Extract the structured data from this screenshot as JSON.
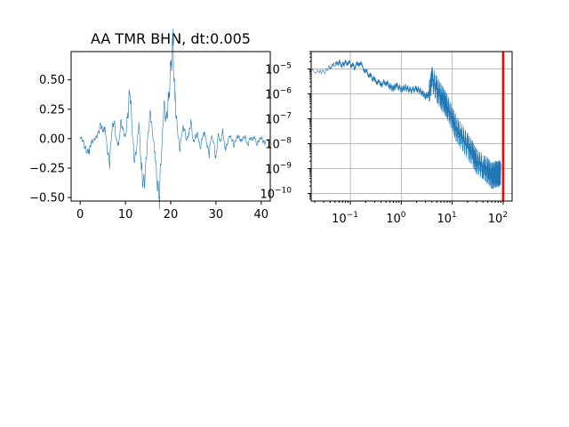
{
  "chart_data": [
    {
      "type": "line",
      "title": "AA TMR BHN, dt:0.005",
      "xlabel": "",
      "ylabel": "",
      "xlim": [
        -2,
        42
      ],
      "ylim": [
        -0.53,
        0.74
      ],
      "xticks": [
        0,
        10,
        20,
        30,
        40
      ],
      "xtick_labels": [
        "0",
        "10",
        "20",
        "30",
        "40"
      ],
      "yticks": [
        -0.5,
        -0.25,
        0.0,
        0.25,
        0.5
      ],
      "ytick_labels": [
        "−0.50",
        "−0.25",
        "0.00",
        "0.25",
        "0.50"
      ],
      "grid": false,
      "line_color": "#1f77b4",
      "series": [
        {
          "x": [
            0,
            0.5,
            1,
            1.5,
            2,
            2.5,
            3,
            3.5,
            4,
            4.5,
            5,
            5.5,
            6,
            6.5,
            7,
            7.5,
            8,
            8.5,
            9,
            9.5,
            10,
            10.5,
            11,
            11.5,
            12,
            12.5,
            13,
            13.5,
            14,
            14.5,
            15,
            15.5,
            16,
            16.5,
            17,
            17.5,
            18,
            18.5,
            19,
            19.5,
            20,
            20.5,
            21,
            21.5,
            22,
            22.5,
            23,
            23.5,
            24,
            24.5,
            25,
            25.5,
            26,
            26.5,
            27,
            27.5,
            28,
            28.5,
            29,
            29.5,
            30,
            30.5,
            31,
            31.5,
            32,
            32.5,
            33,
            33.5,
            34,
            34.5,
            35,
            35.5,
            36,
            36.5,
            37,
            37.5,
            38,
            38.5,
            39,
            39.5,
            40,
            40.5,
            41
          ],
          "y": [
            0.01,
            -0.02,
            -0.06,
            -0.08,
            -0.1,
            -0.05,
            -0.02,
            0.02,
            0.06,
            0.1,
            0.05,
            0.1,
            -0.07,
            -0.2,
            0.05,
            0.15,
            0.0,
            -0.05,
            0.12,
            0.05,
            0.02,
            0.25,
            0.4,
            0.05,
            -0.18,
            -0.05,
            0.15,
            -0.3,
            -0.47,
            -0.2,
            0.05,
            0.2,
            0.02,
            -0.1,
            -0.3,
            -0.47,
            -0.12,
            0.28,
            0.2,
            0.35,
            0.5,
            0.68,
            0.35,
            0.1,
            -0.1,
            0.05,
            0.1,
            0.0,
            0.05,
            0.12,
            -0.05,
            0.03,
            0.05,
            -0.1,
            0.0,
            0.06,
            -0.03,
            -0.12,
            0.02,
            -0.04,
            -0.15,
            0.05,
            -0.05,
            0.05,
            -0.08,
            -0.03,
            0.03,
            -0.02,
            -0.06,
            0.02,
            0.03,
            -0.04,
            0.0,
            0.02,
            -0.05,
            0.0,
            -0.02,
            0.02,
            -0.03,
            -0.01,
            0.0,
            -0.04,
            -0.02
          ]
        }
      ]
    },
    {
      "type": "line",
      "title": "",
      "xlabel": "",
      "ylabel": "",
      "x_scale": "log",
      "y_scale": "log",
      "xlim": [
        0.017,
        150
      ],
      "ylim": [
        5e-11,
        5e-05
      ],
      "xticks": [
        0.1,
        1,
        10,
        100
      ],
      "xtick_labels": [
        {
          "base": "10",
          "exp": "−1"
        },
        {
          "base": "10",
          "exp": "0"
        },
        {
          "base": "10",
          "exp": "1"
        },
        {
          "base": "10",
          "exp": "2"
        }
      ],
      "yticks": [
        1e-10,
        1e-09,
        1e-08,
        1e-07,
        1e-06,
        1e-05
      ],
      "ytick_labels": [
        {
          "base": "10",
          "exp": "−10"
        },
        {
          "base": "10",
          "exp": "−9"
        },
        {
          "base": "10",
          "exp": "−8"
        },
        {
          "base": "10",
          "exp": "−7"
        },
        {
          "base": "10",
          "exp": "−6"
        },
        {
          "base": "10",
          "exp": "−5"
        }
      ],
      "grid": true,
      "line_color": "#1f77b4",
      "vline": {
        "x": 100,
        "color": "#ff0000"
      },
      "series": [
        {
          "x": [
            0.017,
            0.024,
            0.03,
            0.04,
            0.05,
            0.06,
            0.07,
            0.08,
            0.1,
            0.12,
            0.15,
            0.2,
            0.25,
            0.3,
            0.4,
            0.5,
            0.6,
            0.7,
            0.8,
            1.0,
            1.2,
            1.5,
            2.0,
            2.5,
            3.0,
            3.5,
            4.0,
            5.0,
            6.0,
            7.0,
            8.0,
            10.0,
            12.0,
            15.0,
            20.0,
            25.0,
            30.0,
            40.0,
            50.0,
            60.0,
            70.0,
            80.0,
            90.0
          ],
          "y": [
            8.5e-06,
            9.5e-06,
            8.5e-06,
            1.1e-05,
            1.4e-05,
            1.7e-05,
            1.5e-05,
            2e-05,
            1.6e-05,
            1.2e-05,
            1.8e-05,
            8e-06,
            5e-06,
            3.5e-06,
            2.5e-06,
            3e-06,
            2e-06,
            1.6e-06,
            2.2e-06,
            1.5e-06,
            1.8e-06,
            1.4e-06,
            1.6e-06,
            1.2e-06,
            8e-07,
            1e-06,
            4e-06,
            1.5e-06,
            8e-07,
            5e-07,
            3e-07,
            1e-07,
            4e-08,
            2e-08,
            8e-09,
            4e-09,
            2e-09,
            1.2e-09,
            8e-10,
            5e-10,
            6e-10,
            6e-10,
            7e-10
          ]
        }
      ]
    }
  ]
}
